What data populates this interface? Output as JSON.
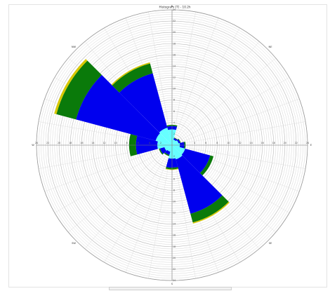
{
  "chart_data": {
    "type": "polar-bar",
    "title": "Histogram  [T] - 10.2h",
    "directions": [
      "N",
      "NE",
      "E",
      "SE",
      "S",
      "SW",
      "W",
      "NW"
    ],
    "radial_max": 24,
    "radial_step": 2,
    "sector_width_deg": 30,
    "sectors": [
      {
        "dir_deg": 0,
        "total": 3.6
      },
      {
        "dir_deg": 30,
        "total": 1.4
      },
      {
        "dir_deg": 60,
        "total": 1.6
      },
      {
        "dir_deg": 90,
        "total": 2.4
      },
      {
        "dir_deg": 120,
        "total": 7.6
      },
      {
        "dir_deg": 150,
        "total": 14.4
      },
      {
        "dir_deg": 180,
        "total": 4.4
      },
      {
        "dir_deg": 210,
        "total": 2.0
      },
      {
        "dir_deg": 240,
        "total": 2.4
      },
      {
        "dir_deg": 270,
        "total": 7.6
      },
      {
        "dir_deg": 300,
        "total": 21.6
      },
      {
        "dir_deg": 330,
        "total": 15.2
      }
    ],
    "bins": [
      {
        "color": "#66ffff",
        "values": [
          2.8,
          1.0,
          1.2,
          1.4,
          2.4,
          2.6,
          2.4,
          1.2,
          1.4,
          2.6,
          3.0,
          3.2
        ]
      },
      {
        "color": "#0000ee",
        "values": [
          0.6,
          0.3,
          0.3,
          0.8,
          4.6,
          10.0,
          1.6,
          0.6,
          0.8,
          3.8,
          14.6,
          10.0
        ]
      },
      {
        "color": "#0a7a0a",
        "values": [
          0.2,
          0.1,
          0.1,
          0.2,
          0.6,
          1.6,
          0.3,
          0.2,
          0.2,
          1.2,
          3.6,
          1.8
        ]
      },
      {
        "color": "#d8c800",
        "values": [
          0.0,
          0.0,
          0.0,
          0.0,
          0.0,
          0.2,
          0.1,
          0.0,
          0.0,
          0.0,
          0.4,
          0.2
        ]
      }
    ],
    "radial_tick_labels_each_axis": [
      "2",
      "4",
      "6",
      "8",
      "10",
      "12",
      "14",
      "16",
      "18",
      "20",
      "22",
      "24"
    ],
    "grid": true
  }
}
